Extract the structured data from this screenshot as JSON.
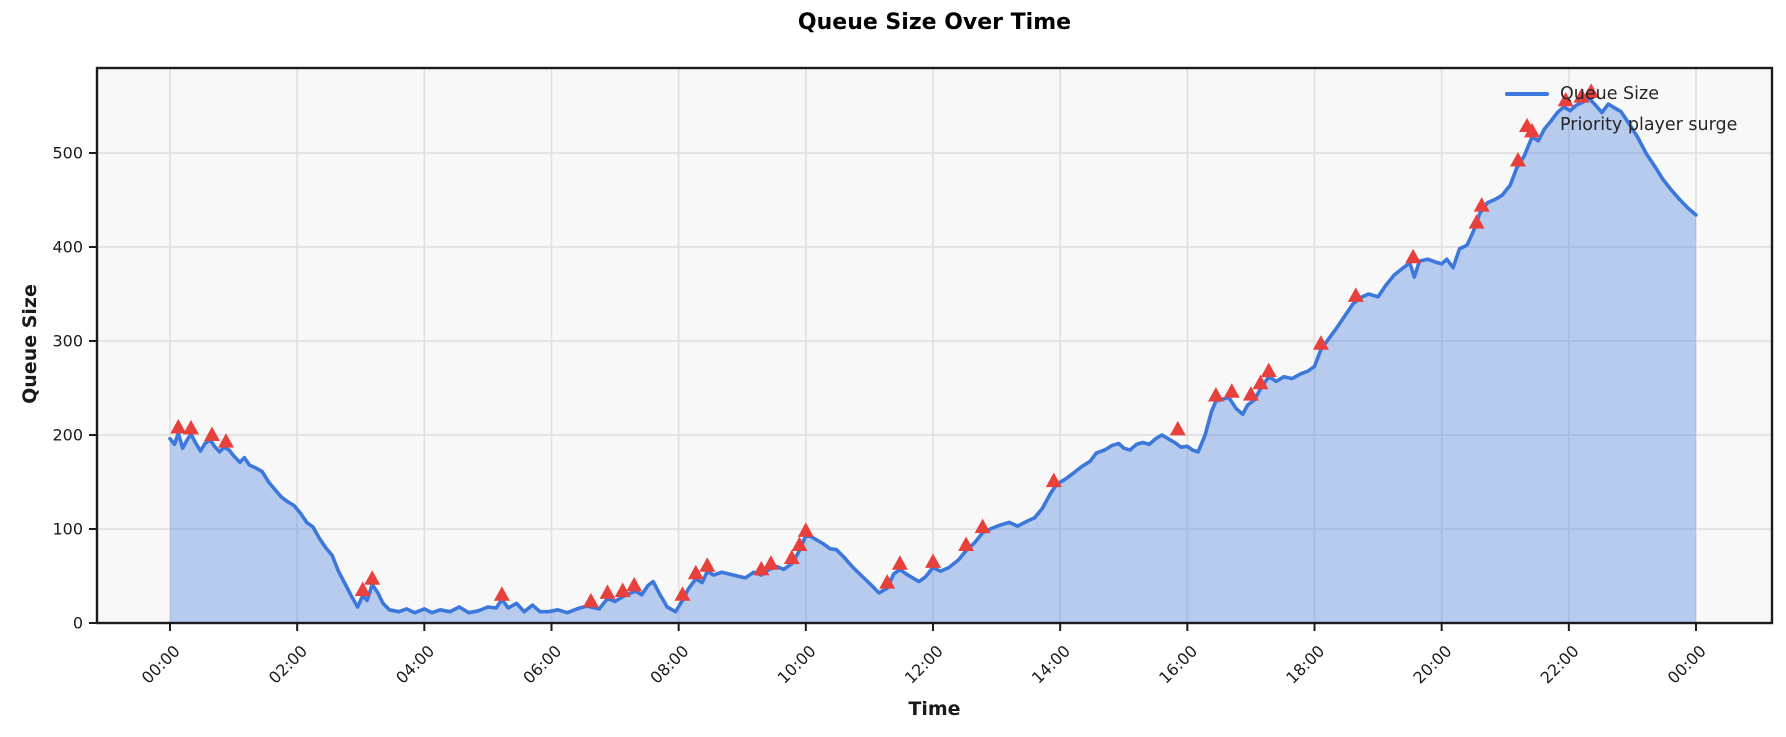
{
  "figure": {
    "title": "Queue Size Over Time",
    "xlabel": "Time",
    "ylabel": "Queue Size"
  },
  "legend": {
    "items": [
      {
        "label": "Queue Size",
        "swatch": "line"
      },
      {
        "label": "Priority player surge",
        "swatch": "triangle"
      }
    ]
  },
  "chart_data": {
    "type": "area",
    "title": "Queue Size Over Time",
    "xlabel": "Time",
    "ylabel": "Queue Size",
    "grid": true,
    "legend_position": "upper right",
    "x_tick_labels": [
      "00:00",
      "02:00",
      "04:00",
      "06:00",
      "08:00",
      "10:00",
      "12:00",
      "14:00",
      "16:00",
      "18:00",
      "20:00",
      "22:00",
      "00:00"
    ],
    "x_tick_hours": [
      0,
      2,
      4,
      6,
      8,
      10,
      12,
      14,
      16,
      18,
      20,
      22,
      24
    ],
    "y_ticks": [
      0,
      100,
      200,
      300,
      400,
      500
    ],
    "ylim": [
      0,
      590
    ],
    "xlim_hours": [
      0,
      24
    ],
    "colors": {
      "line": "#3c78dc",
      "fill_opacity": 0.35,
      "marker": "#e8413c",
      "plot_bg": "#f8f8f8",
      "grid": "#e2e2e2",
      "spine": "#1c1c1c",
      "text": "#1a1a1a"
    },
    "series": [
      {
        "name": "Queue Size",
        "points": [
          [
            0.0,
            196
          ],
          [
            0.07,
            190
          ],
          [
            0.13,
            202
          ],
          [
            0.2,
            186
          ],
          [
            0.27,
            195
          ],
          [
            0.33,
            201
          ],
          [
            0.4,
            192
          ],
          [
            0.48,
            183
          ],
          [
            0.55,
            191
          ],
          [
            0.63,
            195
          ],
          [
            0.7,
            188
          ],
          [
            0.78,
            182
          ],
          [
            0.85,
            187
          ],
          [
            0.93,
            184
          ],
          [
            1.0,
            178
          ],
          [
            1.1,
            171
          ],
          [
            1.17,
            176
          ],
          [
            1.25,
            168
          ],
          [
            1.35,
            165
          ],
          [
            1.45,
            161
          ],
          [
            1.55,
            150
          ],
          [
            1.65,
            142
          ],
          [
            1.75,
            134
          ],
          [
            1.85,
            129
          ],
          [
            1.95,
            125
          ],
          [
            2.05,
            117
          ],
          [
            2.15,
            107
          ],
          [
            2.25,
            102
          ],
          [
            2.35,
            90
          ],
          [
            2.45,
            80
          ],
          [
            2.55,
            72
          ],
          [
            2.65,
            55
          ],
          [
            2.75,
            42
          ],
          [
            2.85,
            29
          ],
          [
            2.95,
            17
          ],
          [
            3.03,
            29
          ],
          [
            3.1,
            24
          ],
          [
            3.18,
            41
          ],
          [
            3.27,
            32
          ],
          [
            3.35,
            21
          ],
          [
            3.45,
            14
          ],
          [
            3.6,
            12
          ],
          [
            3.72,
            15
          ],
          [
            3.85,
            11
          ],
          [
            4.0,
            15
          ],
          [
            4.12,
            11
          ],
          [
            4.25,
            14
          ],
          [
            4.4,
            12
          ],
          [
            4.55,
            17
          ],
          [
            4.7,
            11
          ],
          [
            4.85,
            13
          ],
          [
            5.0,
            17
          ],
          [
            5.13,
            16
          ],
          [
            5.22,
            25
          ],
          [
            5.32,
            16
          ],
          [
            5.45,
            21
          ],
          [
            5.57,
            12
          ],
          [
            5.7,
            19
          ],
          [
            5.82,
            12
          ],
          [
            5.95,
            12
          ],
          [
            6.1,
            14
          ],
          [
            6.25,
            11
          ],
          [
            6.4,
            15
          ],
          [
            6.55,
            18
          ],
          [
            6.62,
            17
          ],
          [
            6.75,
            15
          ],
          [
            6.88,
            26
          ],
          [
            7.0,
            23
          ],
          [
            7.12,
            28
          ],
          [
            7.22,
            31
          ],
          [
            7.32,
            34
          ],
          [
            7.42,
            30
          ],
          [
            7.52,
            40
          ],
          [
            7.6,
            44
          ],
          [
            7.7,
            31
          ],
          [
            7.82,
            17
          ],
          [
            7.95,
            12
          ],
          [
            8.06,
            24
          ],
          [
            8.15,
            36
          ],
          [
            8.27,
            47
          ],
          [
            8.37,
            43
          ],
          [
            8.45,
            55
          ],
          [
            8.55,
            51
          ],
          [
            8.68,
            54
          ],
          [
            8.8,
            52
          ],
          [
            8.92,
            50
          ],
          [
            9.05,
            48
          ],
          [
            9.18,
            54
          ],
          [
            9.3,
            51
          ],
          [
            9.42,
            57
          ],
          [
            9.55,
            60
          ],
          [
            9.65,
            57
          ],
          [
            9.78,
            63
          ],
          [
            9.9,
            77
          ],
          [
            10.0,
            93
          ],
          [
            10.08,
            92
          ],
          [
            10.18,
            88
          ],
          [
            10.28,
            84
          ],
          [
            10.38,
            79
          ],
          [
            10.48,
            78
          ],
          [
            10.6,
            70
          ],
          [
            10.73,
            60
          ],
          [
            10.88,
            50
          ],
          [
            11.02,
            41
          ],
          [
            11.15,
            32
          ],
          [
            11.28,
            37
          ],
          [
            11.38,
            52
          ],
          [
            11.48,
            57
          ],
          [
            11.58,
            52
          ],
          [
            11.68,
            48
          ],
          [
            11.78,
            44
          ],
          [
            11.88,
            49
          ],
          [
            12.0,
            59
          ],
          [
            12.12,
            55
          ],
          [
            12.25,
            59
          ],
          [
            12.4,
            67
          ],
          [
            12.52,
            77
          ],
          [
            12.65,
            85
          ],
          [
            12.78,
            96
          ],
          [
            12.9,
            100
          ],
          [
            13.05,
            104
          ],
          [
            13.2,
            107
          ],
          [
            13.33,
            103
          ],
          [
            13.47,
            108
          ],
          [
            13.6,
            112
          ],
          [
            13.72,
            122
          ],
          [
            13.85,
            138
          ],
          [
            13.95,
            148
          ],
          [
            14.08,
            153
          ],
          [
            14.2,
            159
          ],
          [
            14.33,
            166
          ],
          [
            14.47,
            172
          ],
          [
            14.57,
            181
          ],
          [
            14.7,
            184
          ],
          [
            14.82,
            189
          ],
          [
            14.92,
            191
          ],
          [
            15.0,
            186
          ],
          [
            15.1,
            184
          ],
          [
            15.2,
            190
          ],
          [
            15.3,
            192
          ],
          [
            15.4,
            190
          ],
          [
            15.5,
            196
          ],
          [
            15.6,
            200
          ],
          [
            15.7,
            196
          ],
          [
            15.8,
            192
          ],
          [
            15.9,
            187
          ],
          [
            16.0,
            188
          ],
          [
            16.08,
            184
          ],
          [
            16.17,
            182
          ],
          [
            16.28,
            200
          ],
          [
            16.38,
            225
          ],
          [
            16.45,
            236
          ],
          [
            16.55,
            238
          ],
          [
            16.65,
            240
          ],
          [
            16.77,
            228
          ],
          [
            16.87,
            222
          ],
          [
            16.95,
            232
          ],
          [
            17.05,
            237
          ],
          [
            17.15,
            249
          ],
          [
            17.28,
            262
          ],
          [
            17.4,
            257
          ],
          [
            17.52,
            262
          ],
          [
            17.65,
            260
          ],
          [
            17.78,
            265
          ],
          [
            17.9,
            268
          ],
          [
            18.0,
            273
          ],
          [
            18.1,
            291
          ],
          [
            18.22,
            302
          ],
          [
            18.35,
            314
          ],
          [
            18.48,
            327
          ],
          [
            18.6,
            339
          ],
          [
            18.72,
            346
          ],
          [
            18.85,
            350
          ],
          [
            19.0,
            347
          ],
          [
            19.12,
            359
          ],
          [
            19.25,
            370
          ],
          [
            19.38,
            377
          ],
          [
            19.5,
            383
          ],
          [
            19.57,
            368
          ],
          [
            19.65,
            385
          ],
          [
            19.78,
            387
          ],
          [
            19.9,
            384
          ],
          [
            20.0,
            382
          ],
          [
            20.08,
            387
          ],
          [
            20.18,
            378
          ],
          [
            20.28,
            398
          ],
          [
            20.4,
            402
          ],
          [
            20.5,
            417
          ],
          [
            20.6,
            436
          ],
          [
            20.72,
            447
          ],
          [
            20.85,
            451
          ],
          [
            20.95,
            455
          ],
          [
            21.08,
            466
          ],
          [
            21.18,
            484
          ],
          [
            21.3,
            497
          ],
          [
            21.42,
            517
          ],
          [
            21.52,
            513
          ],
          [
            21.62,
            526
          ],
          [
            21.72,
            534
          ],
          [
            21.82,
            543
          ],
          [
            21.92,
            549
          ],
          [
            22.02,
            545
          ],
          [
            22.12,
            551
          ],
          [
            22.22,
            554
          ],
          [
            22.32,
            558
          ],
          [
            22.42,
            551
          ],
          [
            22.52,
            543
          ],
          [
            22.62,
            552
          ],
          [
            22.72,
            548
          ],
          [
            22.82,
            544
          ],
          [
            22.95,
            531
          ],
          [
            23.08,
            517
          ],
          [
            23.22,
            499
          ],
          [
            23.35,
            486
          ],
          [
            23.48,
            472
          ],
          [
            23.62,
            460
          ],
          [
            23.75,
            450
          ],
          [
            23.88,
            441
          ],
          [
            24.0,
            434
          ]
        ]
      }
    ],
    "event_markers": {
      "name": "Priority player surge",
      "points": [
        [
          0.13,
          208
        ],
        [
          0.33,
          207
        ],
        [
          0.66,
          200
        ],
        [
          0.88,
          193
        ],
        [
          3.03,
          35
        ],
        [
          3.18,
          47
        ],
        [
          5.22,
          30
        ],
        [
          6.62,
          23
        ],
        [
          6.88,
          32
        ],
        [
          7.12,
          34
        ],
        [
          7.3,
          40
        ],
        [
          8.06,
          30
        ],
        [
          8.27,
          53
        ],
        [
          8.45,
          61
        ],
        [
          9.3,
          57
        ],
        [
          9.45,
          63
        ],
        [
          9.78,
          69
        ],
        [
          9.9,
          83
        ],
        [
          10.0,
          98
        ],
        [
          11.28,
          43
        ],
        [
          11.48,
          63
        ],
        [
          12.0,
          65
        ],
        [
          12.52,
          83
        ],
        [
          12.78,
          102
        ],
        [
          13.9,
          151
        ],
        [
          15.85,
          206
        ],
        [
          16.45,
          242
        ],
        [
          16.7,
          246
        ],
        [
          17.0,
          243
        ],
        [
          17.15,
          255
        ],
        [
          17.28,
          268
        ],
        [
          18.1,
          297
        ],
        [
          18.65,
          348
        ],
        [
          19.55,
          389
        ],
        [
          20.55,
          426
        ],
        [
          20.63,
          444
        ],
        [
          21.2,
          492
        ],
        [
          21.42,
          523
        ],
        [
          21.95,
          556
        ],
        [
          22.2,
          560
        ],
        [
          22.35,
          565
        ]
      ]
    }
  }
}
